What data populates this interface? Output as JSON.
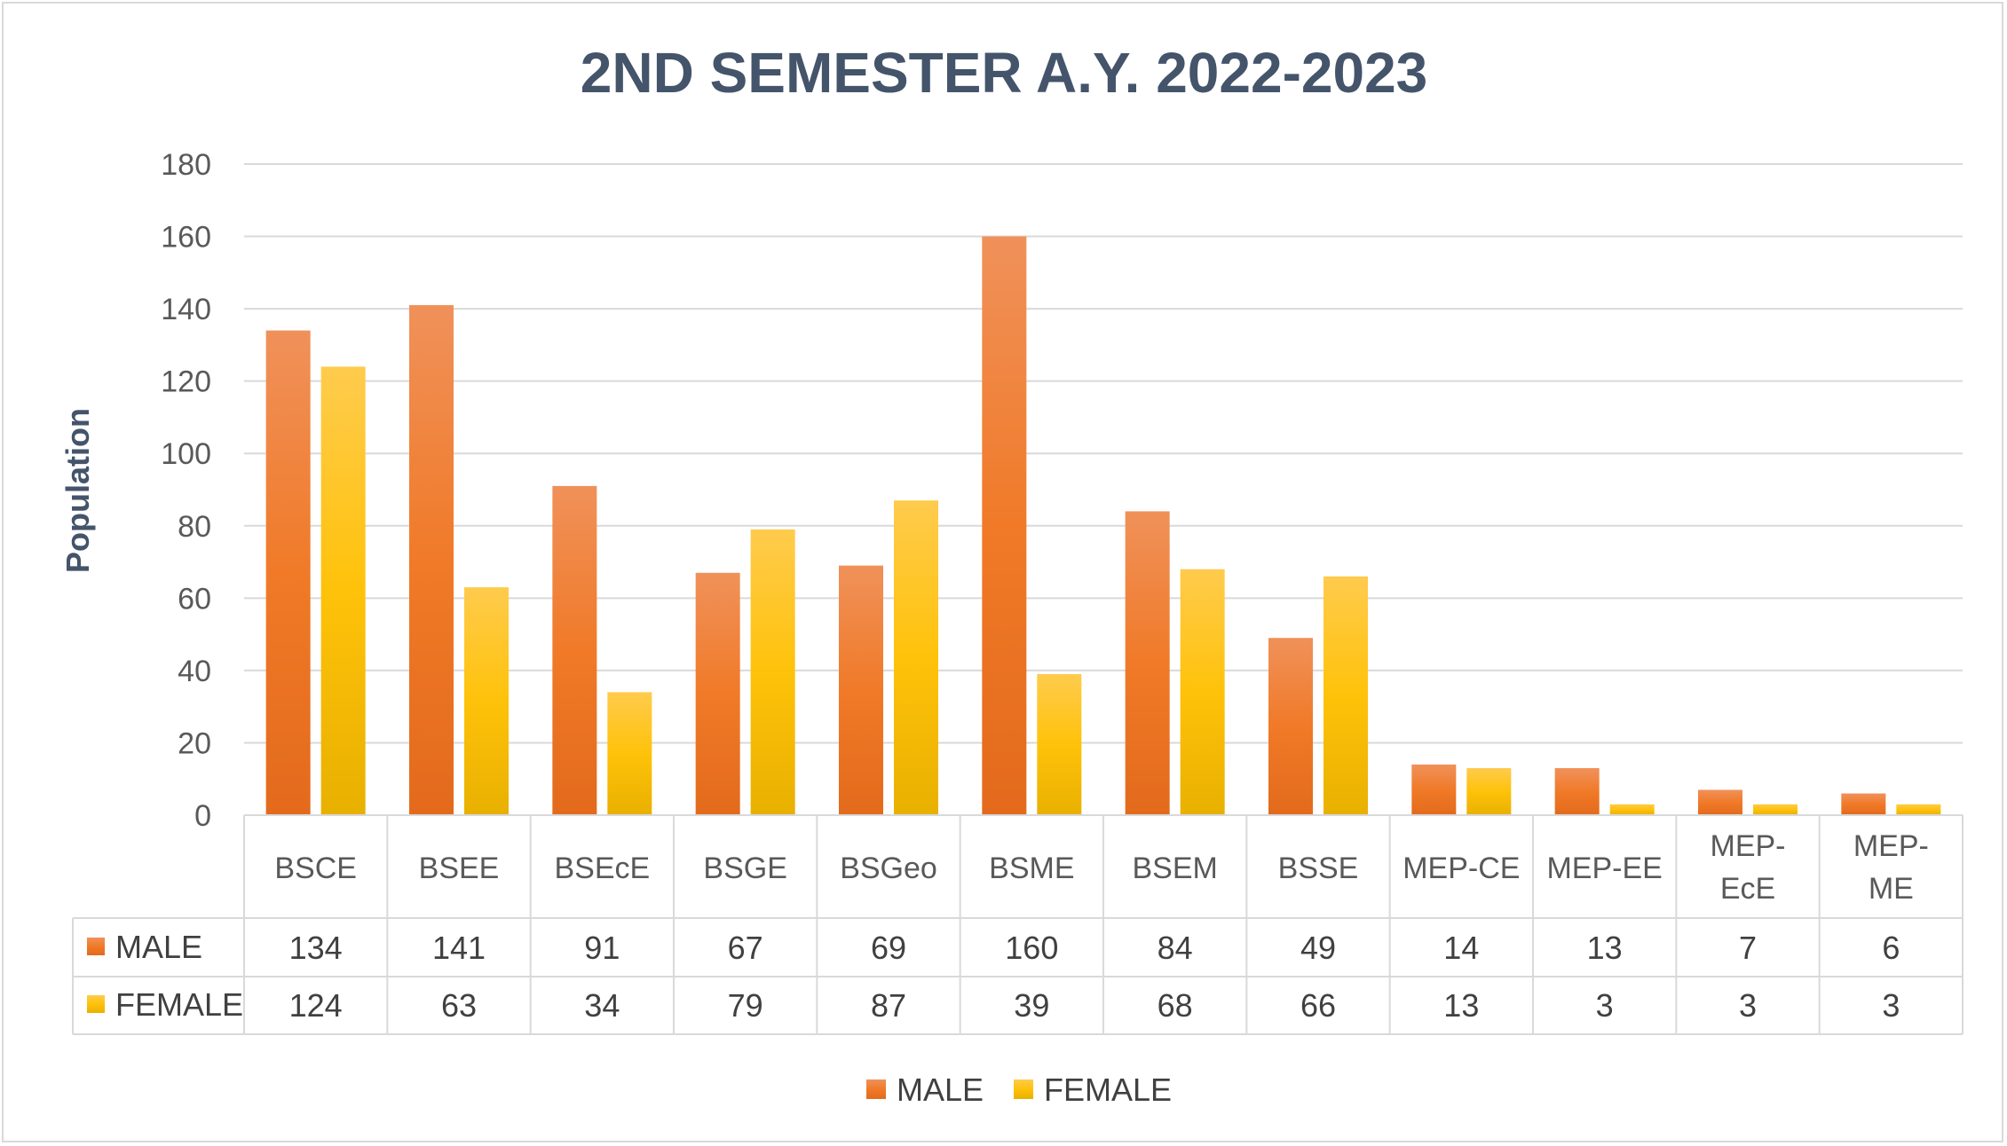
{
  "chart_data": {
    "type": "bar",
    "title": "2ND SEMESTER A.Y. 2022-2023",
    "ylabel": "Population",
    "ylim": [
      0,
      180
    ],
    "yticks": [
      0,
      20,
      40,
      60,
      80,
      100,
      120,
      140,
      160,
      180
    ],
    "grid": true,
    "legend": "bottom",
    "categories": [
      [
        "BSCE"
      ],
      [
        "BSEE"
      ],
      [
        "BSEcE"
      ],
      [
        "BSGE"
      ],
      [
        "BSGeo"
      ],
      [
        "BSME"
      ],
      [
        "BSEM"
      ],
      [
        "BSSE"
      ],
      [
        "MEP-CE"
      ],
      [
        "MEP-EE"
      ],
      [
        "MEP-",
        "EcE"
      ],
      [
        "MEP-",
        "ME"
      ]
    ],
    "series": [
      {
        "name": "MALE",
        "color": "#ed7d31",
        "values": [
          134,
          141,
          91,
          67,
          69,
          160,
          84,
          49,
          14,
          13,
          7,
          6
        ]
      },
      {
        "name": "FEMALE",
        "color": "#ffc000",
        "values": [
          124,
          63,
          34,
          79,
          87,
          39,
          68,
          66,
          13,
          3,
          3,
          3
        ]
      }
    ]
  }
}
